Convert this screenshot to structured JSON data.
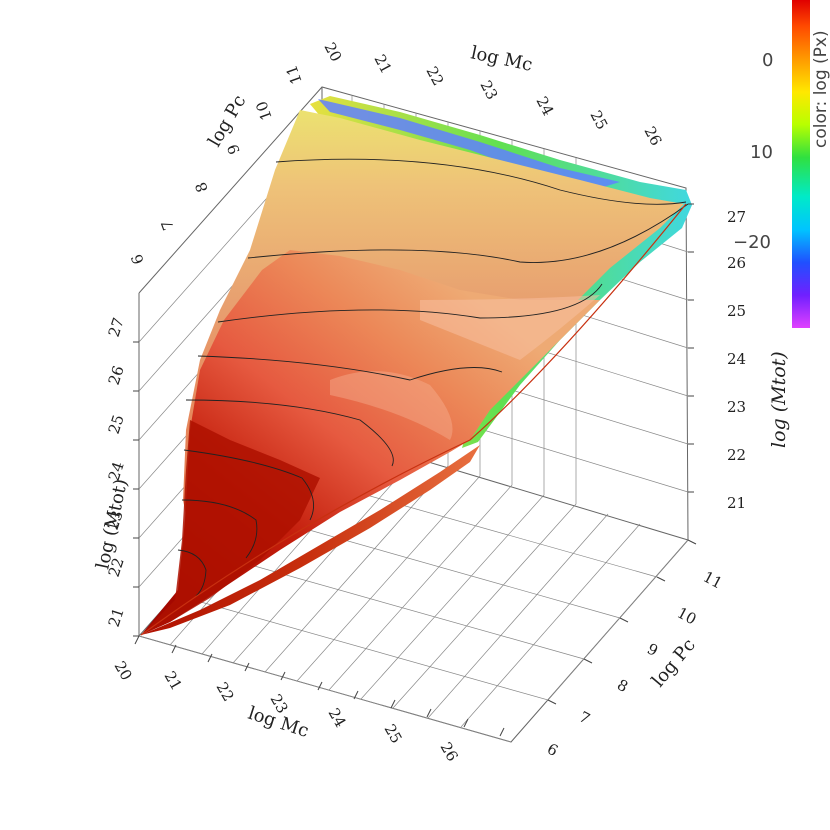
{
  "chart_data": {
    "type": "surface",
    "zlabel_front": "log (Mtot)",
    "zlabel_right": "log (Mtot)",
    "xlabel": "log Mc",
    "ylabel": "log Pc",
    "x_ticks": [
      "20",
      "21",
      "22",
      "23",
      "24",
      "25",
      "26"
    ],
    "y_ticks": [
      "6",
      "7",
      "8",
      "9",
      "10",
      "11"
    ],
    "z_ticks": [
      "21",
      "22",
      "23",
      "24",
      "25",
      "26",
      "27"
    ],
    "xlim": [
      20,
      26.5
    ],
    "ylim": [
      6,
      11
    ],
    "zlim": [
      20.7,
      27.3
    ],
    "colorbar": {
      "label": "color: log (Px)",
      "ticks": [
        "0",
        "10",
        "−20"
      ],
      "colors": [
        "#d80000",
        "#ff4000",
        "#ff9000",
        "#ffe000",
        "#b0ff00",
        "#30e030",
        "#00e8c0",
        "#00c0ff",
        "#2060ff",
        "#6020ff",
        "#c020ff",
        "#ff40ff"
      ]
    },
    "surface_colors": {
      "deep": "#b00e00",
      "mid": "#e04a30",
      "light": "#f5a070",
      "ridge": "#f3b480",
      "edge_yellow": "#e8e040",
      "edge_cyan": "#40d8e0",
      "edge_blue": "#3060ff"
    }
  }
}
